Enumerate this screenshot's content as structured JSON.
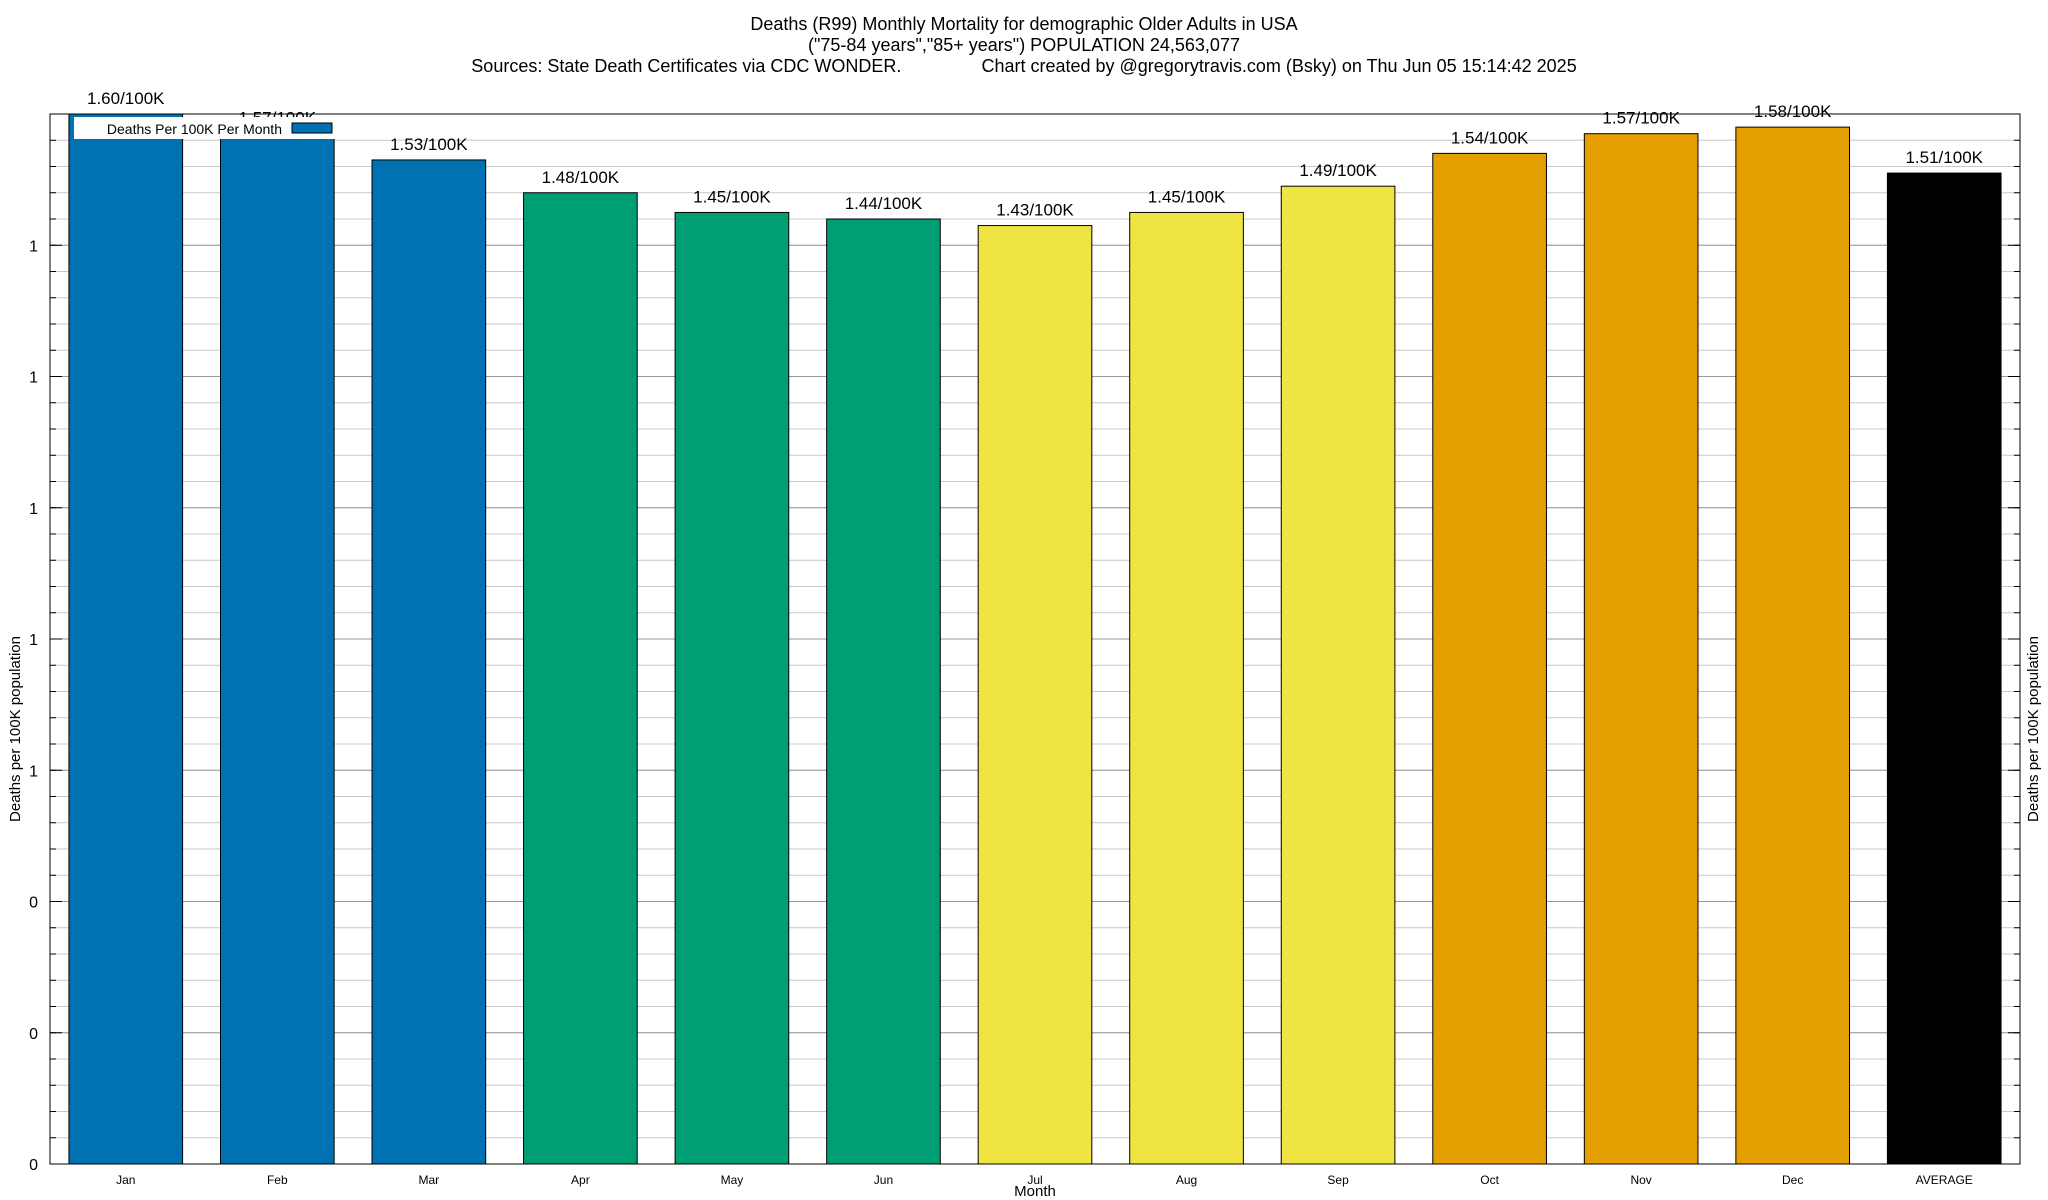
{
  "title": {
    "line1": "Deaths (R99) Monthly Mortality for demographic Older Adults in USA",
    "line2": "(\"75-84 years\",\"85+ years\") POPULATION 24,563,077",
    "sources": "Sources: State Death Certificates via CDC WONDER.",
    "credit": "Chart created by @gregorytravis.com (Bsky) on Thu Jun 05 15:14:42 2025"
  },
  "chart_data": {
    "type": "bar",
    "categories": [
      "Jan",
      "Feb",
      "Mar",
      "Apr",
      "May",
      "Jun",
      "Jul",
      "Aug",
      "Sep",
      "Oct",
      "Nov",
      "Dec",
      "AVERAGE"
    ],
    "values": [
      1.6,
      1.57,
      1.53,
      1.48,
      1.45,
      1.44,
      1.43,
      1.45,
      1.49,
      1.54,
      1.57,
      1.58,
      1.51
    ],
    "data_labels": [
      "1.60/100K",
      "1.57/100K",
      "1.53/100K",
      "1.48/100K",
      "1.45/100K",
      "1.44/100K",
      "1.43/100K",
      "1.45/100K",
      "1.49/100K",
      "1.54/100K",
      "1.57/100K",
      "1.58/100K",
      "1.51/100K"
    ],
    "bar_colors": [
      "#0072b2",
      "#0072b2",
      "#0072b2",
      "#009e73",
      "#009e73",
      "#009e73",
      "#f0e442",
      "#f0e442",
      "#f0e442",
      "#e69f00",
      "#e69f00",
      "#e69f00",
      "#000000"
    ],
    "series": [
      {
        "name": "Deaths Per 100K Per Month",
        "color": "#0072b2"
      }
    ],
    "xlabel": "Month",
    "ylabel": "Deaths per 100K population",
    "y2label": "Deaths per 100K population",
    "ylim": [
      0,
      1.6
    ],
    "ytick_values": [
      0,
      0.2,
      0.4,
      0.6,
      0.8,
      1.0,
      1.2,
      1.4
    ],
    "ytick_labels": [
      "0",
      "0",
      "0",
      "1",
      "1",
      "1",
      "1",
      "1"
    ],
    "y_minor_tick_step": 0.04,
    "grid": true,
    "legend_position": "top-left"
  }
}
